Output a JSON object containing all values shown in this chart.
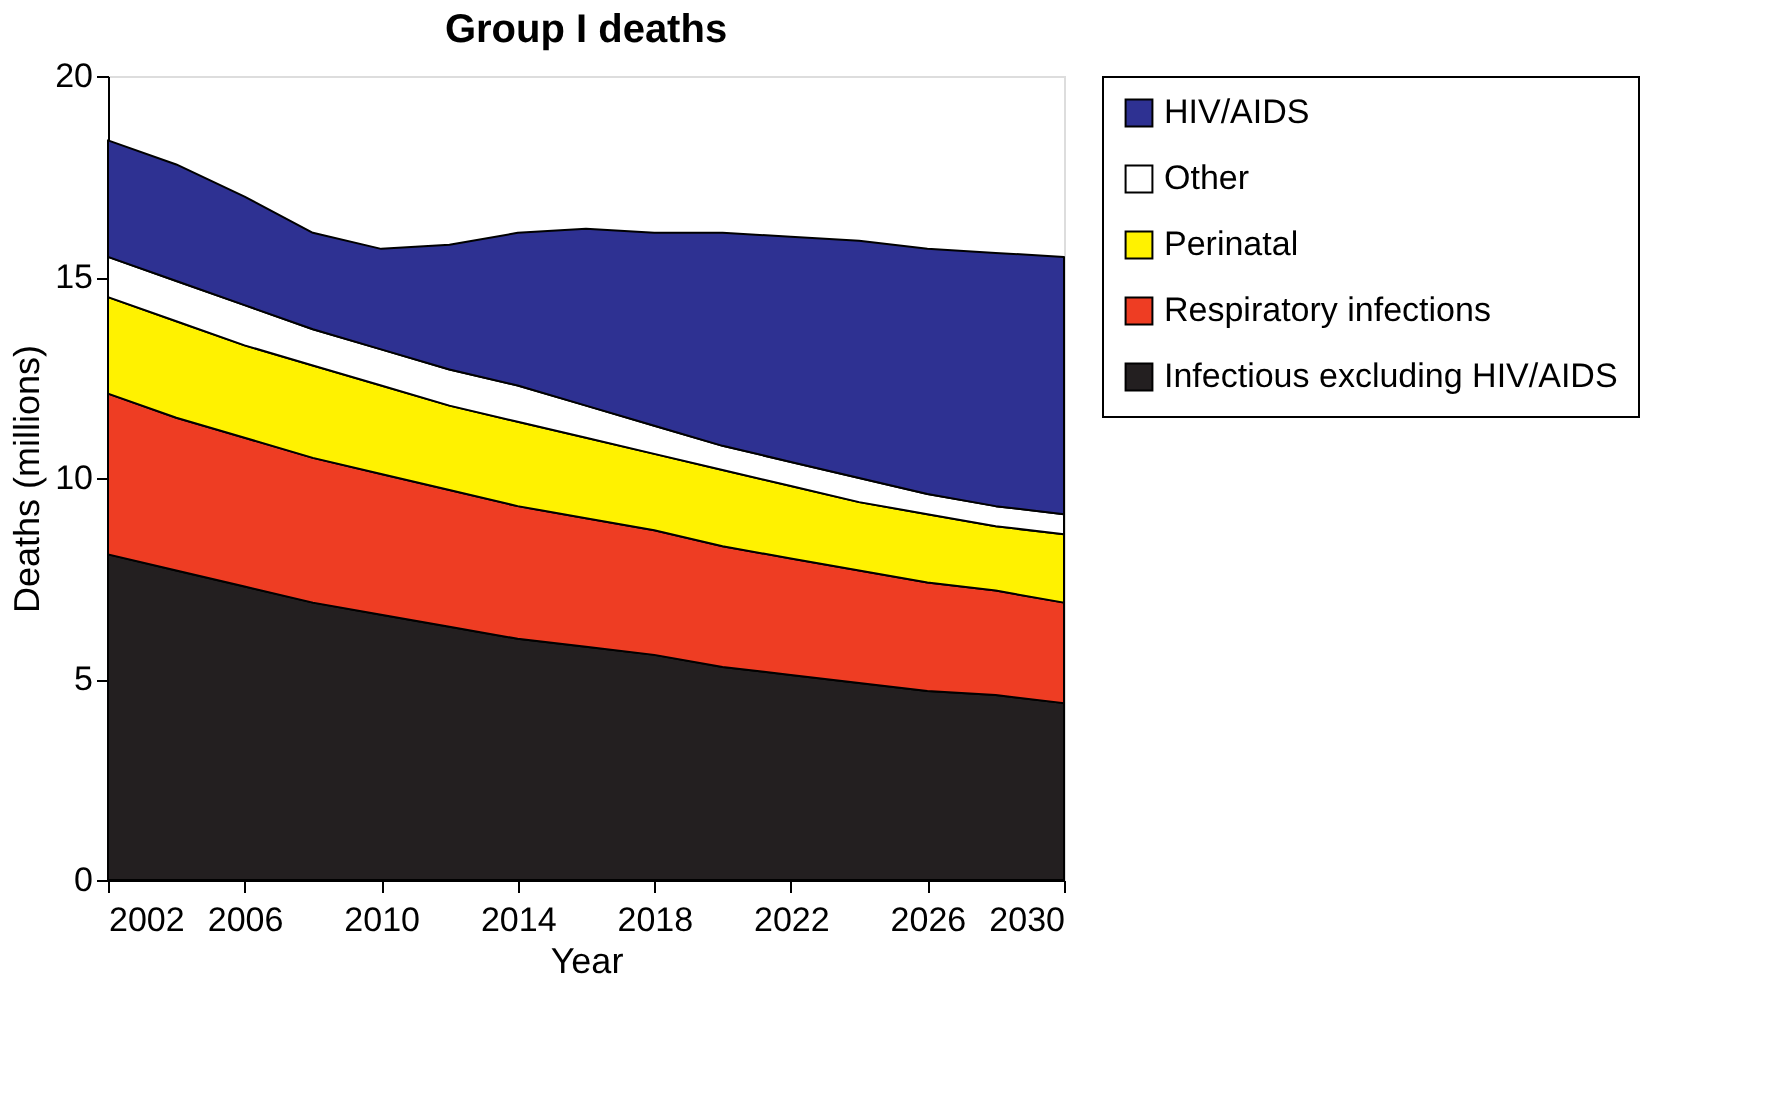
{
  "chart_data": {
    "type": "area",
    "stacked": true,
    "title": "Group I deaths",
    "xlabel": "Year",
    "ylabel": "Deaths (millions)",
    "x": [
      2002,
      2004,
      2006,
      2008,
      2010,
      2012,
      2014,
      2016,
      2018,
      2020,
      2022,
      2024,
      2026,
      2028,
      2030
    ],
    "xlim": [
      2002,
      2030
    ],
    "xticks": [
      2002,
      2006,
      2010,
      2014,
      2018,
      2022,
      2026,
      2030
    ],
    "ylim": [
      0,
      20
    ],
    "yticks": [
      0,
      5,
      10,
      15,
      20
    ],
    "grid": false,
    "legend": "right",
    "series": [
      {
        "name": "Infectious excluding HIV/AIDS",
        "color": "#231f20",
        "values": [
          8.1,
          7.7,
          7.3,
          6.9,
          6.6,
          6.3,
          6.0,
          5.8,
          5.6,
          5.3,
          5.1,
          4.9,
          4.7,
          4.6,
          4.4
        ]
      },
      {
        "name": "Respiratory infections",
        "color": "#ee3d23",
        "values": [
          4.0,
          3.8,
          3.7,
          3.6,
          3.5,
          3.4,
          3.3,
          3.2,
          3.1,
          3.0,
          2.9,
          2.8,
          2.7,
          2.6,
          2.5
        ]
      },
      {
        "name": "Perinatal",
        "color": "#fff200",
        "values": [
          2.4,
          2.4,
          2.3,
          2.3,
          2.2,
          2.1,
          2.1,
          2.0,
          1.9,
          1.9,
          1.8,
          1.7,
          1.7,
          1.6,
          1.7
        ]
      },
      {
        "name": "Other",
        "color": "#ffffff",
        "values": [
          1.0,
          1.0,
          1.0,
          0.9,
          0.9,
          0.9,
          0.9,
          0.8,
          0.7,
          0.6,
          0.6,
          0.6,
          0.5,
          0.5,
          0.5
        ]
      },
      {
        "name": "HIV/AIDS",
        "color": "#2e3192",
        "values": [
          2.9,
          2.9,
          2.7,
          2.4,
          2.5,
          3.1,
          3.8,
          4.4,
          4.8,
          5.3,
          5.6,
          5.9,
          6.1,
          6.3,
          6.4
        ]
      }
    ]
  }
}
